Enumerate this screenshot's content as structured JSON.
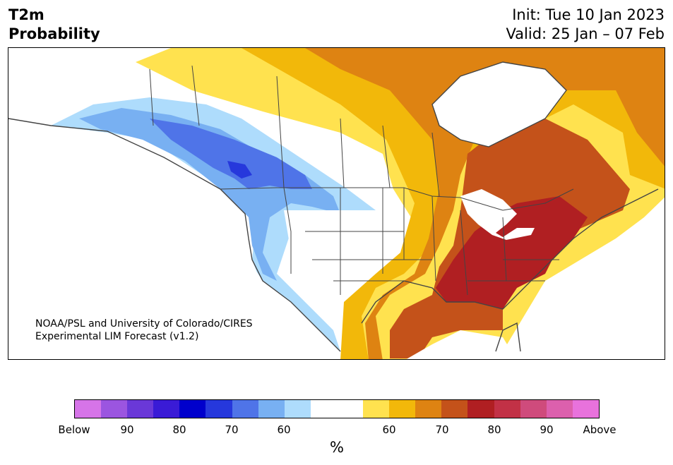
{
  "header": {
    "title_line1": "T2m",
    "title_line2": "Probability",
    "init": "Init: Tue 10 Jan 2023",
    "valid": "Valid: 25 Jan – 07 Feb"
  },
  "map": {
    "credit_line1": "NOAA/PSL and University of Colorado/CIRES",
    "credit_line2": "Experimental LIM Forecast (v1.2)"
  },
  "legend": {
    "colors": [
      "#d674e8",
      "#9b55e0",
      "#6a38d8",
      "#3a1bd6",
      "#0000cc",
      "#2638dc",
      "#4f74e8",
      "#78b0f2",
      "#aedcfc",
      "#ffffff",
      "#ffffff",
      "#ffe24f",
      "#f2b80a",
      "#de8312",
      "#c4521a",
      "#b01f22",
      "#c23146",
      "#cf4b7c",
      "#dc60ad",
      "#e872dc"
    ],
    "labels": [
      "Below",
      "90",
      "80",
      "70",
      "60",
      "60",
      "70",
      "80",
      "90",
      "Above"
    ],
    "unit": "%"
  }
}
